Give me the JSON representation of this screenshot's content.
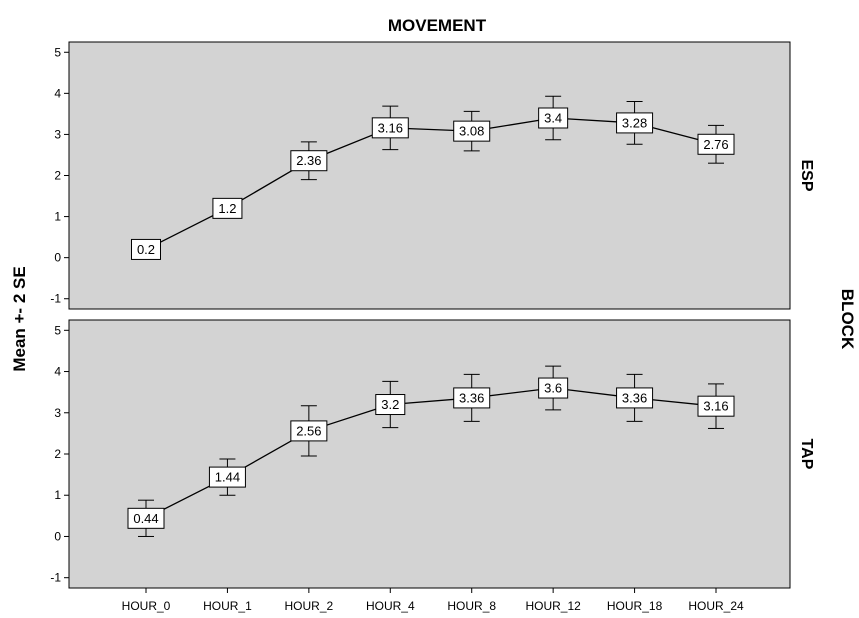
{
  "chart_data": {
    "type": "line",
    "title": "MOVEMENT",
    "ylabel": "Mean +- 2 SE",
    "xlabel": "",
    "facet_label": "BLOCK",
    "categories": [
      "HOUR_0",
      "HOUR_1",
      "HOUR_2",
      "HOUR_4",
      "HOUR_8",
      "HOUR_12",
      "HOUR_18",
      "HOUR_24"
    ],
    "ylim": [
      -1.25,
      5.25
    ],
    "yticks": [
      -1,
      0,
      1,
      2,
      3,
      4,
      5
    ],
    "grid": false,
    "background_color": "#d3d3d3",
    "line_color": "#000000",
    "panels": [
      {
        "name": "ESP",
        "values": [
          0.2,
          1.2,
          2.36,
          3.16,
          3.08,
          3.4,
          3.28,
          2.76
        ],
        "value_labels": [
          "0.2",
          "1.2",
          "2.36",
          "3.16",
          "3.08",
          "3.4",
          "3.28",
          "2.76"
        ],
        "lower": [
          0.2,
          1.2,
          1.9,
          2.63,
          2.6,
          2.87,
          2.76,
          2.3
        ],
        "upper": [
          0.2,
          1.2,
          2.82,
          3.69,
          3.56,
          3.93,
          3.8,
          3.22
        ]
      },
      {
        "name": "TAP",
        "values": [
          0.44,
          1.44,
          2.56,
          3.2,
          3.36,
          3.6,
          3.36,
          3.16
        ],
        "value_labels": [
          "0.44",
          "1.44",
          "2.56",
          "3.2",
          "3.36",
          "3.6",
          "3.36",
          "3.16"
        ],
        "lower": [
          0.0,
          1.0,
          1.95,
          2.64,
          2.79,
          3.07,
          2.79,
          2.62
        ],
        "upper": [
          0.88,
          1.88,
          3.17,
          3.76,
          3.93,
          4.13,
          3.93,
          3.7
        ]
      }
    ]
  }
}
